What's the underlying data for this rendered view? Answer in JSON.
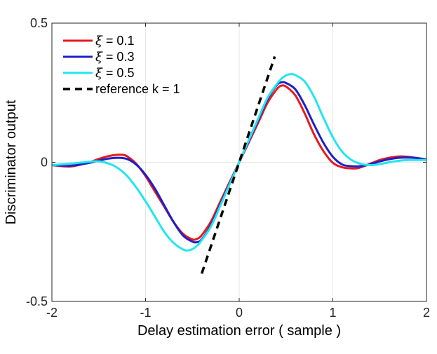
{
  "chart_data": {
    "type": "line",
    "title": "",
    "xlabel": "Delay estimation error ( sample )",
    "ylabel": "Discriminator output",
    "xlim": [
      -2,
      2
    ],
    "ylim": [
      -0.5,
      0.5
    ],
    "xticks": [
      -2,
      -1,
      0,
      1,
      2
    ],
    "xtick_labels": [
      "-2",
      "-1",
      "0",
      "1",
      "2"
    ],
    "yticks": [
      -0.5,
      0,
      0.5
    ],
    "ytick_labels": [
      "-0.5",
      "0",
      "0.5"
    ],
    "grid": true,
    "legend_position": "top-left",
    "series": [
      {
        "name": "ξ = 0.1",
        "symbol": "ξ",
        "value_text": " = 0.1",
        "color": "#e41a1c",
        "style": "solid",
        "x": [
          -2,
          -1.8,
          -1.6,
          -1.5,
          -1.4,
          -1.3,
          -1.25,
          -1.2,
          -1.1,
          -1.0,
          -0.9,
          -0.8,
          -0.7,
          -0.6,
          -0.5,
          -0.45,
          -0.4,
          -0.3,
          -0.2,
          -0.1,
          0,
          0.1,
          0.2,
          0.3,
          0.4,
          0.45,
          0.5,
          0.6,
          0.7,
          0.8,
          0.9,
          1.0,
          1.1,
          1.2,
          1.25,
          1.3,
          1.4,
          1.5,
          1.6,
          1.7,
          1.8,
          1.9,
          2.0
        ],
        "y": [
          -0.01,
          -0.015,
          0.0,
          0.012,
          0.022,
          0.027,
          0.027,
          0.022,
          -0.005,
          -0.05,
          -0.105,
          -0.16,
          -0.215,
          -0.257,
          -0.277,
          -0.275,
          -0.262,
          -0.212,
          -0.14,
          -0.07,
          0.0,
          0.07,
          0.14,
          0.212,
          0.262,
          0.275,
          0.272,
          0.24,
          0.175,
          0.1,
          0.04,
          -0.002,
          -0.018,
          -0.022,
          -0.022,
          -0.018,
          -0.005,
          0.008,
          0.016,
          0.021,
          0.02,
          0.015,
          0.01
        ]
      },
      {
        "name": "ξ = 0.3",
        "symbol": "ξ",
        "value_text": " = 0.3",
        "color": "#1f1fc8",
        "style": "solid",
        "x": [
          -2,
          -1.8,
          -1.6,
          -1.5,
          -1.4,
          -1.3,
          -1.2,
          -1.1,
          -1.0,
          -0.9,
          -0.8,
          -0.7,
          -0.6,
          -0.5,
          -0.45,
          -0.4,
          -0.3,
          -0.2,
          -0.1,
          0,
          0.1,
          0.2,
          0.3,
          0.4,
          0.45,
          0.5,
          0.6,
          0.7,
          0.8,
          0.9,
          1.0,
          1.1,
          1.2,
          1.3,
          1.4,
          1.5,
          1.6,
          1.7,
          1.8,
          1.9,
          2.0
        ],
        "y": [
          -0.01,
          -0.012,
          -0.002,
          0.006,
          0.013,
          0.016,
          0.012,
          -0.008,
          -0.045,
          -0.095,
          -0.155,
          -0.215,
          -0.263,
          -0.285,
          -0.287,
          -0.277,
          -0.225,
          -0.15,
          -0.075,
          0.0,
          0.075,
          0.15,
          0.225,
          0.277,
          0.287,
          0.285,
          0.262,
          0.205,
          0.135,
          0.07,
          0.02,
          -0.008,
          -0.014,
          -0.014,
          -0.007,
          0.003,
          0.011,
          0.016,
          0.017,
          0.015,
          0.01
        ]
      },
      {
        "name": "ξ = 0.5",
        "symbol": "ξ",
        "value_text": " = 0.5",
        "color": "#22e6ee",
        "style": "solid",
        "x": [
          -2,
          -1.8,
          -1.6,
          -1.5,
          -1.4,
          -1.3,
          -1.2,
          -1.1,
          -1.0,
          -0.9,
          -0.8,
          -0.7,
          -0.6,
          -0.55,
          -0.5,
          -0.45,
          -0.4,
          -0.3,
          -0.2,
          -0.1,
          0,
          0.1,
          0.2,
          0.3,
          0.4,
          0.45,
          0.5,
          0.55,
          0.6,
          0.7,
          0.8,
          0.9,
          1.0,
          1.1,
          1.2,
          1.3,
          1.4,
          1.5,
          1.6,
          1.7,
          1.8,
          1.9,
          2.0
        ],
        "y": [
          -0.01,
          -0.005,
          0.002,
          0.003,
          -0.004,
          -0.02,
          -0.048,
          -0.09,
          -0.14,
          -0.195,
          -0.25,
          -0.29,
          -0.313,
          -0.317,
          -0.312,
          -0.3,
          -0.28,
          -0.23,
          -0.155,
          -0.078,
          0.0,
          0.078,
          0.155,
          0.23,
          0.28,
          0.3,
          0.312,
          0.317,
          0.313,
          0.29,
          0.235,
          0.16,
          0.09,
          0.038,
          0.008,
          -0.006,
          -0.01,
          -0.007,
          0.0,
          0.005,
          0.008,
          0.008,
          0.008
        ]
      },
      {
        "name": "reference k = 1",
        "symbol": "",
        "value_text": "reference k = 1",
        "color": "#000000",
        "style": "dashed",
        "x": [
          -0.4,
          0.38
        ],
        "y": [
          -0.4,
          0.38
        ]
      }
    ]
  }
}
